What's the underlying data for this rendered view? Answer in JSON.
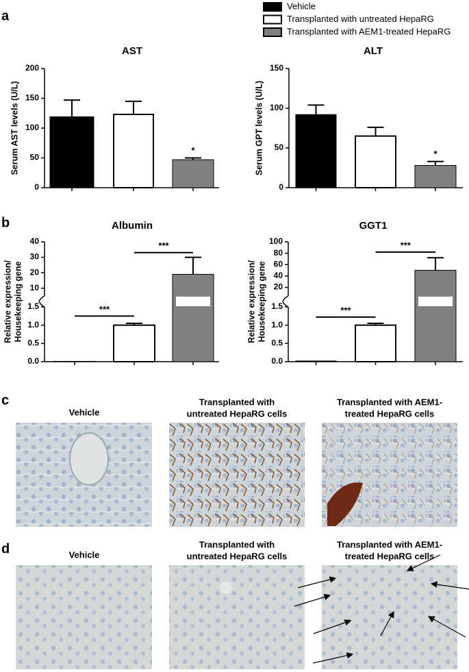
{
  "panels": [
    "a",
    "b",
    "c",
    "d"
  ],
  "legend": [
    {
      "name": "Vehicle",
      "color": "#000000"
    },
    {
      "name": "Transplanted with untreated HepaRG",
      "color": "#ffffff"
    },
    {
      "name": "Transplanted with AEM1-treated HepaRG",
      "color": "#808080"
    }
  ],
  "chart_data": [
    {
      "type": "bar",
      "title": "AST",
      "ylabel": "Serum AST levels (U/L)",
      "values": [
        119,
        123,
        47
      ],
      "errors": [
        28,
        22,
        3
      ],
      "ylim": [
        0,
        200
      ],
      "yticks": [
        0,
        50,
        100,
        150,
        200
      ],
      "annotations": [
        {
          "text": "*",
          "bar": 2
        }
      ]
    },
    {
      "type": "bar",
      "title": "ALT",
      "ylabel": "Serum GPT levels (U/L)",
      "values": [
        92,
        65,
        28
      ],
      "errors": [
        12,
        11,
        5
      ],
      "ylim": [
        0,
        150
      ],
      "yticks": [
        0,
        50,
        100,
        150
      ],
      "annotations": [
        {
          "text": "*",
          "bar": 2
        }
      ]
    },
    {
      "type": "broken_bar",
      "title": "Albumin",
      "ylabel": [
        "Relative expression/",
        "Housekeeping gene"
      ],
      "values": [
        0.01,
        1.0,
        19
      ],
      "errors": [
        0,
        0.05,
        11
      ],
      "ylim_lower": [
        0,
        1.5
      ],
      "yticks_lower": [
        {
          "value": 0,
          "label": "0.0"
        },
        0.5,
        {
          "value": 1,
          "label": "1.0"
        },
        1.5
      ],
      "ylim_upper": [
        5,
        40
      ],
      "yticks_upper": [
        10,
        20,
        30,
        40
      ],
      "brackets": [
        {
          "text": "***",
          "from": 0,
          "to": 1,
          "y": 1.25
        },
        {
          "text": "***",
          "from": 1,
          "to": 2,
          "y": 33
        }
      ]
    },
    {
      "type": "broken_bar",
      "title": "GGT1",
      "ylabel": [
        "Relative expression/",
        "Housekeeping gene"
      ],
      "values": [
        0.02,
        1.0,
        50
      ],
      "errors": [
        0,
        0.05,
        22
      ],
      "ylim_lower": [
        0,
        1.5
      ],
      "yticks_lower": [
        {
          "value": 0,
          "label": "0.0"
        },
        0.5,
        {
          "value": 1,
          "label": "1.0"
        },
        1.5
      ],
      "ylim_upper": [
        5,
        100
      ],
      "yticks_upper": [
        20,
        40,
        60,
        80,
        100
      ],
      "brackets": [
        {
          "text": "***",
          "from": 0,
          "to": 1,
          "y": 1.22
        },
        {
          "text": "***",
          "from": 1,
          "to": 2,
          "y": 82
        }
      ]
    }
  ],
  "micrographs": {
    "c": [
      [
        "Vehicle"
      ],
      [
        "Transplanted with",
        "untreated HepaRG cells"
      ],
      [
        "Transplanted with AEM1-",
        "treated HepaRG cells"
      ]
    ],
    "d": [
      [
        "Vehicle"
      ],
      [
        "Transplanted with",
        "untreated HepaRG cells"
      ],
      [
        "Transplanted with AEM1-",
        "treated HepaRG cells"
      ]
    ]
  }
}
